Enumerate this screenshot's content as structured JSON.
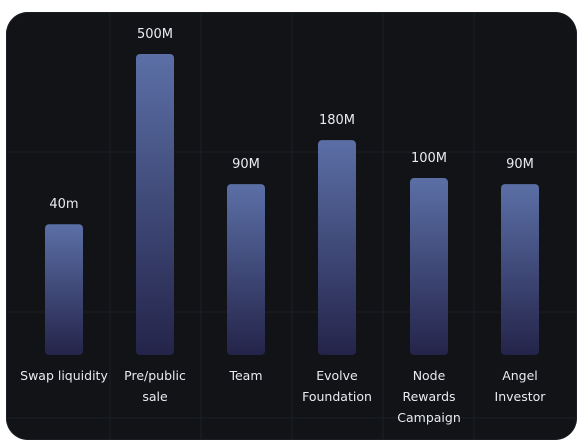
{
  "chart_data": {
    "type": "bar",
    "categories": [
      "Swap liquidity",
      "Pre/public sale",
      "Team",
      "Evolve Foundation",
      "Node Rewards Campaign",
      "Angel Investor"
    ],
    "category_lines": [
      [
        "Swap liquidity"
      ],
      [
        "Pre/public",
        "sale"
      ],
      [
        "Team"
      ],
      [
        "Evolve",
        "Foundation"
      ],
      [
        "Node",
        "Rewards",
        "Campaign"
      ],
      [
        "Angel",
        "Investor"
      ]
    ],
    "values": [
      40,
      500,
      90,
      180,
      100,
      90
    ],
    "value_labels": [
      "40m",
      "500M",
      "90M",
      "180M",
      "100M",
      "90M"
    ],
    "display_scale": "nonlinear",
    "title": "",
    "xlabel": "",
    "ylabel": "",
    "grid": true,
    "legend": "none",
    "colors": {
      "bar_top": "#5b6fa6",
      "bar_bottom": "#24244a",
      "background": "#111317",
      "text": "#e9ebf2"
    }
  }
}
